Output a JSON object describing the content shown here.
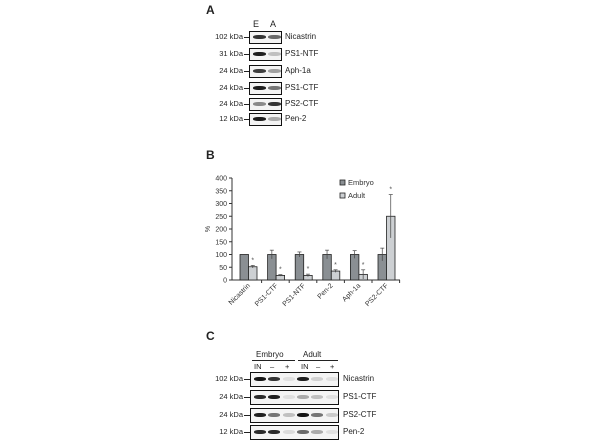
{
  "panel_a": {
    "letter": "A",
    "lane_labels": [
      "E",
      "A"
    ],
    "rows": [
      {
        "kda": "102 kDa",
        "protein": "Nicastrin",
        "bands": [
          0.85,
          0.6
        ]
      },
      {
        "kda": "31 kDa",
        "protein": "PS1-NTF",
        "bands": [
          0.95,
          0.2
        ]
      },
      {
        "kda": "24 kDa",
        "protein": "Aph-1a",
        "bands": [
          0.8,
          0.35
        ]
      },
      {
        "kda": "24 kDa",
        "protein": "PS1-CTF",
        "bands": [
          0.95,
          0.55
        ]
      },
      {
        "kda": "24 kDa",
        "protein": "PS2-CTF",
        "bands": [
          0.45,
          0.85
        ]
      },
      {
        "kda": "12 kDa",
        "protein": "Pen-2",
        "bands": [
          0.95,
          0.3
        ]
      }
    ]
  },
  "panel_b": {
    "letter": "B"
  },
  "chart_data": {
    "type": "bar",
    "title": "",
    "xlabel": "",
    "ylabel": "%",
    "ylim": [
      0,
      400
    ],
    "yticks": [
      0,
      50,
      100,
      150,
      200,
      250,
      300,
      350,
      400
    ],
    "categories": [
      "Nicastrin",
      "PS1-CTF",
      "PS1-NTF",
      "Pen-2",
      "Aph-1a",
      "PS2-CTF"
    ],
    "series": [
      {
        "name": "Embryo",
        "color": "#8a8f93",
        "values": [
          100,
          100,
          100,
          100,
          100,
          100
        ],
        "errors": [
          0,
          17,
          10,
          17,
          15,
          25
        ]
      },
      {
        "name": "Adult",
        "color": "#cdd0d3",
        "values": [
          52,
          18,
          18,
          35,
          22,
          250
        ],
        "errors": [
          5,
          3,
          5,
          5,
          18,
          85
        ]
      }
    ],
    "significance_markers": [
      "*",
      "*",
      "*",
      "*",
      "*",
      "*"
    ],
    "legend": {
      "position": "top-right",
      "entries": [
        "Embryo",
        "Adult"
      ]
    },
    "grid": false
  },
  "panel_c": {
    "letter": "C",
    "groups": [
      "Embryo",
      "Adult"
    ],
    "lane_labels": [
      "IN",
      "–",
      "+",
      "IN",
      "–",
      "+"
    ],
    "rows": [
      {
        "kda": "102 kDa",
        "protein": "Nicastrin",
        "bands": [
          1.0,
          0.85,
          0.05,
          0.95,
          0.12,
          0.05
        ]
      },
      {
        "kda": "24 kDa",
        "protein": "PS1-CTF",
        "bands": [
          0.9,
          0.95,
          0.05,
          0.3,
          0.2,
          0.05
        ]
      },
      {
        "kda": "24 kDa",
        "protein": "PS2-CTF",
        "bands": [
          0.95,
          0.55,
          0.2,
          1.0,
          0.55,
          0.15
        ]
      },
      {
        "kda": "12 kDa",
        "protein": "Pen-2",
        "bands": [
          0.9,
          0.9,
          0.08,
          0.6,
          0.3,
          0.05
        ]
      }
    ]
  }
}
